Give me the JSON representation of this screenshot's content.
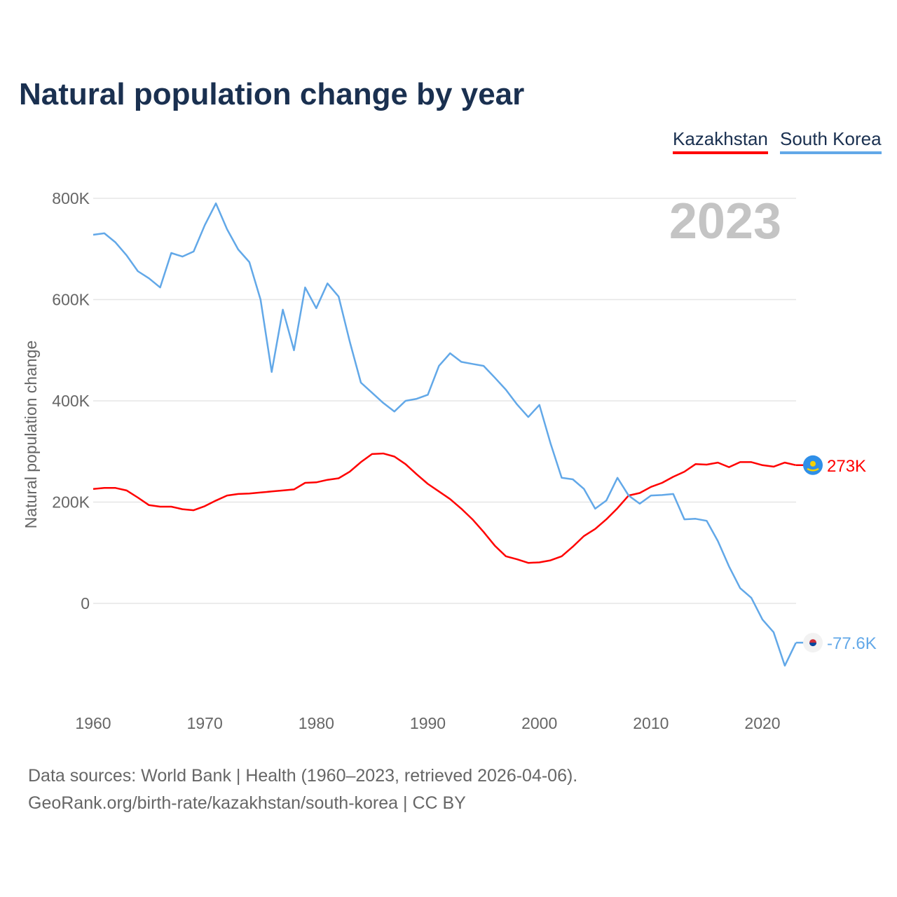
{
  "title": "Natural population change by year",
  "legend": [
    {
      "label": "Kazakhstan",
      "color": "#ff0000"
    },
    {
      "label": "South Korea",
      "color": "#62a8e8"
    }
  ],
  "source_line1": "Data sources: World Bank | Health (1960–2023, retrieved 2026-04-06).",
  "source_line2": "GeoRank.org/birth-rate/kazakhstan/south-korea | CC BY",
  "chart_data": {
    "type": "line",
    "title": "Natural population change by year",
    "ylabel": "Natural population change",
    "xlabel": "",
    "year_label": "2023",
    "xlim": [
      1960,
      2023
    ],
    "ylim": [
      -180,
      830
    ],
    "x_ticks": [
      1960,
      1970,
      1980,
      1990,
      2000,
      2010,
      2020
    ],
    "y_ticks": [
      {
        "v": 0,
        "label": "0"
      },
      {
        "v": 200,
        "label": "200K"
      },
      {
        "v": 400,
        "label": "400K"
      },
      {
        "v": 600,
        "label": "600K"
      },
      {
        "v": 800,
        "label": "800K"
      }
    ],
    "grid": true,
    "legend_position": "top-right",
    "units": "thousands",
    "x": [
      1960,
      1961,
      1962,
      1963,
      1964,
      1965,
      1966,
      1967,
      1968,
      1969,
      1970,
      1971,
      1972,
      1973,
      1974,
      1975,
      1976,
      1977,
      1978,
      1979,
      1980,
      1981,
      1982,
      1983,
      1984,
      1985,
      1986,
      1987,
      1988,
      1989,
      1990,
      1991,
      1992,
      1993,
      1994,
      1995,
      1996,
      1997,
      1998,
      1999,
      2000,
      2001,
      2002,
      2003,
      2004,
      2005,
      2006,
      2007,
      2008,
      2009,
      2010,
      2011,
      2012,
      2013,
      2014,
      2015,
      2016,
      2017,
      2018,
      2019,
      2020,
      2021,
      2022,
      2023
    ],
    "series": [
      {
        "name": "Kazakhstan",
        "color": "#ff0000",
        "end_label": "273K",
        "values": [
          226,
          228,
          228,
          223,
          209,
          194,
          191,
          191,
          186,
          184,
          192,
          203,
          213,
          216,
          217,
          219,
          221,
          223,
          225,
          238,
          239,
          244,
          247,
          260,
          279,
          295,
          296,
          290,
          275,
          255,
          236,
          221,
          206,
          187,
          166,
          141,
          114,
          93,
          87,
          80,
          81,
          85,
          93,
          112,
          133,
          147,
          166,
          188,
          213,
          218,
          230,
          238,
          250,
          260,
          275,
          274,
          278,
          269,
          279,
          279,
          273,
          270,
          278,
          273
        ]
      },
      {
        "name": "South Korea",
        "color": "#62a8e8",
        "end_label": "-77.6K",
        "values": [
          728,
          731,
          713,
          687,
          656,
          642,
          624,
          692,
          685,
          695,
          747,
          790,
          739,
          699,
          674,
          600,
          457,
          580,
          500,
          624,
          583,
          632,
          606,
          517,
          436,
          416,
          396,
          379,
          400,
          404,
          412,
          469,
          494,
          477,
          473,
          469,
          446,
          422,
          393,
          368,
          392,
          316,
          248,
          245,
          226,
          187,
          203,
          248,
          213,
          197,
          213,
          214,
          216,
          166,
          167,
          163,
          123,
          73,
          30,
          11,
          -32,
          -57,
          -123,
          -77.6
        ]
      }
    ]
  }
}
